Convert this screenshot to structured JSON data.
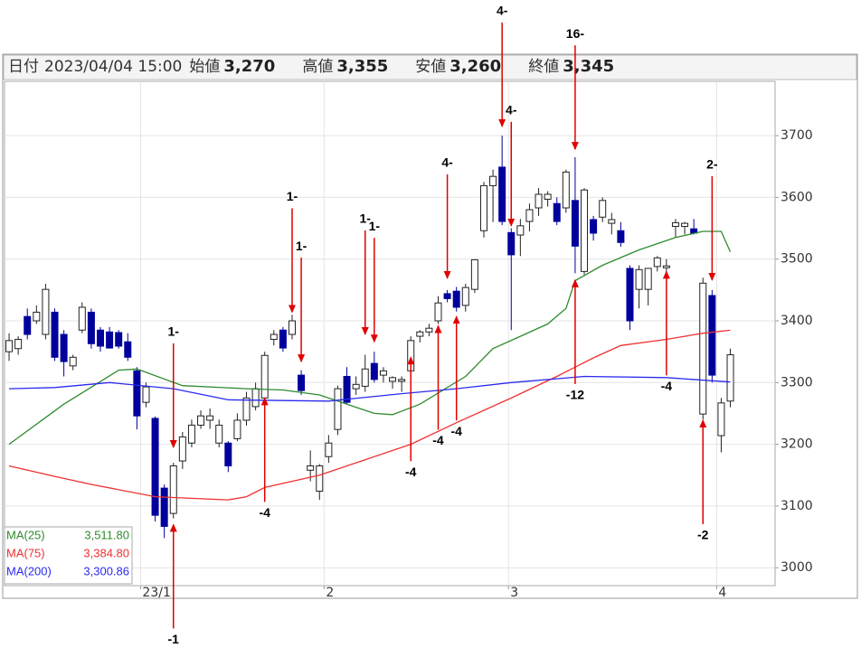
{
  "header": {
    "date_label": "日付",
    "date": "2023/04/04 15:00",
    "fields": [
      {
        "label": "始値",
        "value": "3,270",
        "color": "#222222"
      },
      {
        "label": "高値",
        "value": "3,355",
        "color": "#e8141e"
      },
      {
        "label": "安値",
        "value": "3,260",
        "color": "#168a16"
      },
      {
        "label": "終値",
        "value": "3,345",
        "color": "#222222"
      }
    ]
  },
  "chart_data": {
    "type": "candlestick",
    "up_color": "#ffffff",
    "down_color": "#00009c",
    "open": [
      3350,
      3355,
      3407,
      3400,
      3378,
      3414,
      3378,
      3327,
      3385,
      3414,
      3385,
      3382,
      3381,
      3366,
      3319,
      3268,
      3242,
      3129,
      3088,
      3173,
      3202,
      3231,
      3239,
      3202,
      3202,
      3209,
      3239,
      3261,
      3275,
      3370,
      3385,
      3378,
      3312,
      3158,
      3124,
      3180,
      3224,
      3310,
      3290,
      3294,
      3331,
      3312,
      3302,
      3302,
      3319,
      3375,
      3382,
      3400,
      3444,
      3448,
      3425,
      3451,
      3546,
      3619,
      3649,
      3543,
      3539,
      3561,
      3583,
      3597,
      3590,
      3583,
      3595,
      3480,
      3564,
      3568,
      3558,
      3546,
      3485,
      3451,
      3451,
      3488,
      3486,
      3553,
      3553,
      3549,
      3249,
      3441,
      3214,
      3270
    ],
    "high": [
      3380,
      3375,
      3420,
      3425,
      3460,
      3420,
      3385,
      3345,
      3430,
      3420,
      3390,
      3390,
      3385,
      3380,
      3325,
      3300,
      3245,
      3135,
      3170,
      3220,
      3240,
      3255,
      3258,
      3240,
      3205,
      3250,
      3285,
      3300,
      3350,
      3385,
      3390,
      3410,
      3320,
      3190,
      3168,
      3215,
      3295,
      3325,
      3310,
      3345,
      3350,
      3325,
      3310,
      3310,
      3375,
      3385,
      3395,
      3440,
      3450,
      3455,
      3460,
      3500,
      3625,
      3645,
      3700,
      3550,
      3565,
      3590,
      3615,
      3610,
      3600,
      3645,
      3665,
      3615,
      3570,
      3600,
      3575,
      3560,
      3490,
      3490,
      3485,
      3505,
      3500,
      3565,
      3560,
      3565,
      3470,
      3450,
      3275,
      3355
    ],
    "low": [
      3335,
      3345,
      3370,
      3395,
      3370,
      3335,
      3310,
      3320,
      3380,
      3355,
      3350,
      3355,
      3355,
      3335,
      3224,
      3260,
      3075,
      3048,
      3080,
      3160,
      3195,
      3225,
      3225,
      3195,
      3155,
      3205,
      3230,
      3255,
      3270,
      3360,
      3350,
      3370,
      3280,
      3140,
      3110,
      3170,
      3215,
      3265,
      3280,
      3285,
      3300,
      3300,
      3290,
      3285,
      3310,
      3365,
      3375,
      3395,
      3430,
      3415,
      3415,
      3445,
      3535,
      3560,
      3555,
      3385,
      3505,
      3545,
      3570,
      3585,
      3555,
      3575,
      3477,
      3475,
      3530,
      3560,
      3540,
      3520,
      3385,
      3420,
      3425,
      3480,
      3470,
      3535,
      3540,
      3540,
      3240,
      3300,
      3187,
      3260
    ],
    "close": [
      3368,
      3370,
      3378,
      3414,
      3451,
      3341,
      3334,
      3341,
      3422,
      3363,
      3359,
      3356,
      3359,
      3341,
      3246,
      3293,
      3085,
      3067,
      3165,
      3212,
      3231,
      3246,
      3246,
      3231,
      3165,
      3239,
      3275,
      3290,
      3344,
      3378,
      3356,
      3400,
      3287,
      3165,
      3165,
      3202,
      3290,
      3268,
      3297,
      3322,
      3305,
      3319,
      3308,
      3305,
      3368,
      3382,
      3388,
      3429,
      3436,
      3422,
      3454,
      3499,
      3619,
      3634,
      3561,
      3507,
      3554,
      3580,
      3605,
      3605,
      3561,
      3641,
      3521,
      3612,
      3542,
      3595,
      3564,
      3527,
      3400,
      3483,
      3485,
      3502,
      3489,
      3559,
      3558,
      3542,
      3461,
      3312,
      3267,
      3345
    ],
    "series": [
      {
        "name": "MA(25)",
        "color": "#2e8b2e",
        "legend_value": "3,511.80",
        "x": [
          0,
          6,
          12,
          14,
          19,
          26,
          30,
          34,
          38,
          40,
          42,
          45,
          50,
          53,
          56,
          59,
          61,
          62,
          65,
          69,
          73,
          76,
          78,
          79
        ],
        "values": [
          3200,
          3265,
          3320,
          3322,
          3295,
          3290,
          3288,
          3280,
          3260,
          3250,
          3248,
          3265,
          3310,
          3355,
          3375,
          3395,
          3420,
          3465,
          3490,
          3515,
          3535,
          3545,
          3545,
          3511.8
        ]
      },
      {
        "name": "MA(75)",
        "color": "#f03030",
        "legend_value": "3,384.80",
        "x": [
          0,
          5,
          9,
          16,
          24,
          26,
          28,
          34,
          39,
          44,
          49,
          55,
          60,
          64,
          67,
          72,
          76,
          79
        ],
        "values": [
          3165,
          3148,
          3135,
          3115,
          3110,
          3115,
          3130,
          3150,
          3175,
          3200,
          3235,
          3275,
          3310,
          3340,
          3360,
          3370,
          3380,
          3384.8
        ]
      },
      {
        "name": "MA(200)",
        "color": "#2a2af0",
        "legend_value": "3,300.86",
        "x": [
          0,
          5,
          11,
          18,
          24,
          35,
          43,
          49,
          55,
          63,
          72,
          79
        ],
        "values": [
          3290,
          3292,
          3300,
          3290,
          3272,
          3270,
          3282,
          3290,
          3300,
          3310,
          3308,
          3300.86
        ]
      }
    ],
    "annotations": [
      {
        "label": "1-",
        "direction": "down",
        "x": 18,
        "y": 3195
      },
      {
        "label": "-1",
        "direction": "up",
        "x": 18,
        "y": 3070
      },
      {
        "label": "-4",
        "direction": "up",
        "x": 28,
        "y": 3275
      },
      {
        "label": "1-",
        "direction": "down",
        "x": 31,
        "y": 3414
      },
      {
        "label": "1-",
        "direction": "down",
        "x": 32,
        "y": 3334
      },
      {
        "label": "1-",
        "direction": "down",
        "x": 39,
        "y": 3378
      },
      {
        "label": "1-",
        "direction": "down",
        "x": 40,
        "y": 3366
      },
      {
        "label": "-4",
        "direction": "up",
        "x": 44,
        "y": 3341
      },
      {
        "label": "-4",
        "direction": "up",
        "x": 47,
        "y": 3392
      },
      {
        "label": "4-",
        "direction": "down",
        "x": 48,
        "y": 3469
      },
      {
        "label": "-4",
        "direction": "up",
        "x": 49,
        "y": 3407
      },
      {
        "label": "4-",
        "direction": "down",
        "x": 54,
        "y": 3715
      },
      {
        "label": "4-",
        "direction": "down",
        "x": 55,
        "y": 3554
      },
      {
        "label": "16-",
        "direction": "down",
        "x": 62,
        "y": 3678
      },
      {
        "label": "-12",
        "direction": "up",
        "x": 62,
        "y": 3466
      },
      {
        "label": "-4",
        "direction": "up",
        "x": 72,
        "y": 3480
      },
      {
        "label": "2-",
        "direction": "down",
        "x": 77,
        "y": 3466
      },
      {
        "label": "-2",
        "direction": "up",
        "x": 76,
        "y": 3239
      }
    ],
    "xlim": [
      -0.5,
      83.9
    ],
    "xticks": [
      {
        "value": 14.4,
        "label": "23/1"
      },
      {
        "value": 34.5,
        "label": "2"
      },
      {
        "value": 54.7,
        "label": "3"
      },
      {
        "value": 77.5,
        "label": "4"
      }
    ],
    "ylim": [
      2971,
      3788
    ],
    "yticks": [
      3000,
      3100,
      3200,
      3300,
      3400,
      3500,
      3600,
      3700
    ],
    "grid": true
  }
}
